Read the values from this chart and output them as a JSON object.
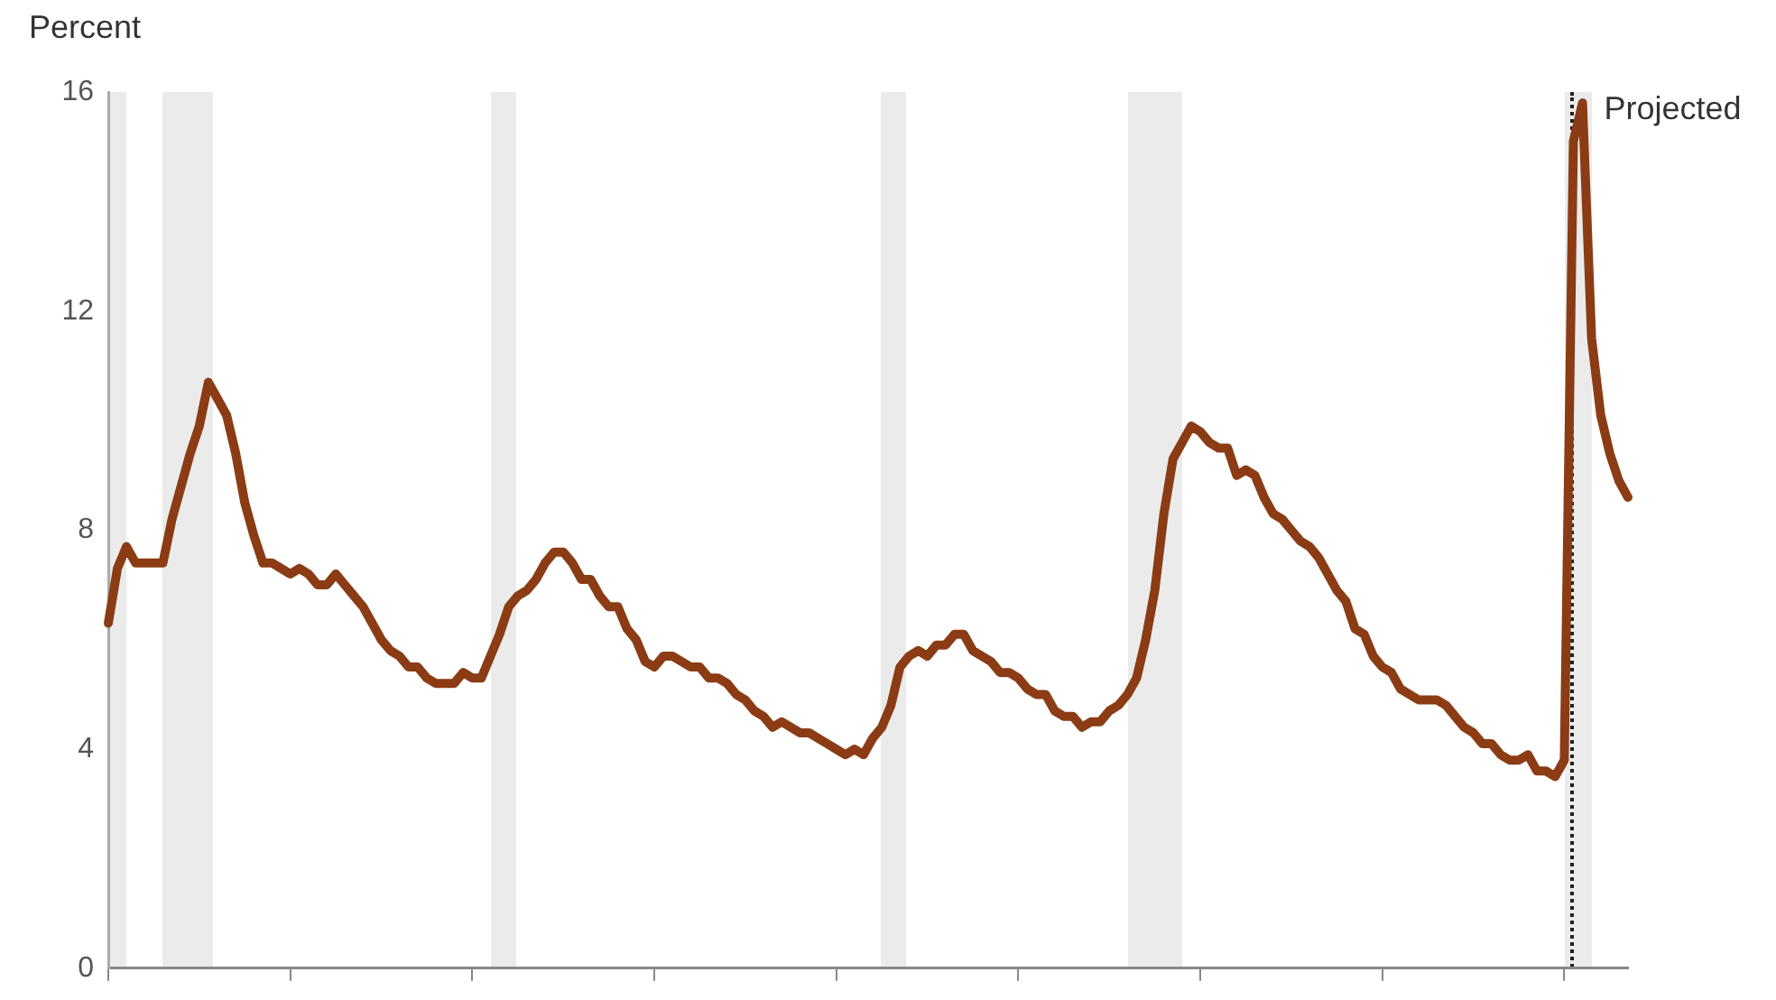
{
  "chart_data": {
    "type": "line",
    "ylabel": "Percent",
    "tick_labels": "y",
    "ylim": [
      0,
      16
    ],
    "yticks": [
      0,
      4,
      8,
      12,
      16
    ],
    "line_style": "solid",
    "annotations": [
      "Projected"
    ],
    "categories": [
      null,
      null,
      null,
      null,
      null,
      null,
      null,
      null,
      null,
      null,
      null,
      null,
      null,
      null,
      null,
      null,
      null,
      null,
      null,
      null,
      null,
      null,
      null,
      null,
      null,
      null,
      null,
      null,
      null,
      null,
      null,
      null,
      null,
      null,
      null,
      null,
      null,
      null,
      null,
      null,
      null,
      null,
      null,
      null,
      null,
      null,
      null,
      null,
      null,
      null,
      null,
      null,
      null,
      null,
      null,
      null,
      null,
      null,
      null,
      null,
      null,
      null,
      null,
      null,
      null,
      null,
      null,
      null,
      null,
      null,
      null,
      null,
      null,
      null,
      null,
      null,
      null,
      null,
      null,
      null,
      null,
      null,
      null,
      null,
      null,
      null,
      null,
      null,
      null,
      null,
      null,
      null,
      null,
      null,
      null,
      null,
      null,
      null,
      null,
      null,
      null,
      null,
      null,
      null,
      null,
      null,
      null,
      null,
      null,
      null,
      null,
      null,
      null,
      null,
      null,
      null,
      null,
      null,
      null,
      null,
      null,
      null,
      null,
      null,
      null,
      null,
      null,
      null,
      null,
      null,
      null,
      null,
      null,
      null,
      null,
      null,
      null,
      null,
      null,
      null,
      null,
      null,
      null,
      null,
      null,
      null,
      null,
      null,
      null,
      null,
      null,
      null,
      null,
      null,
      null,
      null,
      null,
      null,
      null,
      null,
      null,
      null,
      null,
      null,
      null,
      null,
      null,
      null
    ],
    "series": [
      {
        "color": "#8b3c14",
        "values": [
          6.3,
          7.3,
          7.7,
          7.4,
          7.4,
          7.4,
          7.4,
          8.2,
          8.8,
          9.4,
          9.9,
          10.7,
          10.4,
          10.1,
          9.4,
          8.5,
          7.9,
          7.4,
          7.4,
          7.3,
          7.2,
          7.3,
          7.2,
          7.0,
          7.0,
          7.2,
          7.0,
          6.8,
          6.6,
          6.3,
          6.0,
          5.8,
          5.7,
          5.5,
          5.5,
          5.3,
          5.2,
          5.2,
          5.2,
          5.4,
          5.3,
          5.3,
          5.7,
          6.1,
          6.6,
          6.8,
          6.9,
          7.1,
          7.4,
          7.6,
          7.6,
          7.4,
          7.1,
          7.1,
          6.8,
          6.6,
          6.6,
          6.2,
          6.0,
          5.6,
          5.5,
          5.7,
          5.7,
          5.6,
          5.5,
          5.5,
          5.3,
          5.3,
          5.2,
          5.0,
          4.9,
          4.7,
          4.6,
          4.4,
          4.5,
          4.4,
          4.3,
          4.3,
          4.2,
          4.1,
          4.0,
          3.9,
          4.0,
          3.9,
          4.2,
          4.4,
          4.8,
          5.5,
          5.7,
          5.8,
          5.7,
          5.9,
          5.9,
          6.1,
          6.1,
          5.8,
          5.7,
          5.6,
          5.4,
          5.4,
          5.3,
          5.1,
          5.0,
          5.0,
          4.7,
          4.6,
          4.6,
          4.4,
          4.5,
          4.5,
          4.7,
          4.8,
          5.0,
          5.3,
          6.0,
          6.9,
          8.3,
          9.3,
          9.6,
          9.9,
          9.8,
          9.6,
          9.5,
          9.5,
          9.0,
          9.1,
          9.0,
          8.6,
          8.3,
          8.2,
          8.0,
          7.8,
          7.7,
          7.5,
          7.2,
          6.9,
          6.7,
          6.2,
          6.1,
          5.7,
          5.5,
          5.4,
          5.1,
          5.0,
          4.9,
          4.9,
          4.9,
          4.8,
          4.6,
          4.4,
          4.3,
          4.1,
          4.1,
          3.9,
          3.8,
          3.8,
          3.9,
          3.6,
          3.6,
          3.5,
          3.8,
          15.1,
          15.8,
          11.5,
          10.1,
          9.4,
          8.9,
          8.6
        ]
      }
    ]
  }
}
